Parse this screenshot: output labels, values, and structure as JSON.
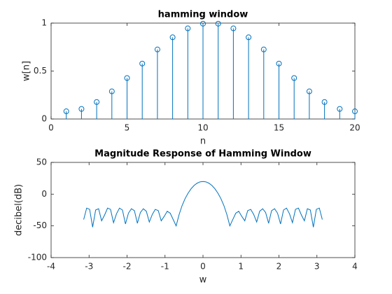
{
  "chart_data": [
    {
      "type": "stem",
      "title": "hamming window",
      "xlabel": "n",
      "ylabel": "w[n]",
      "color": "#0072bd",
      "x": [
        1,
        2,
        3,
        4,
        5,
        6,
        7,
        8,
        9,
        10,
        11,
        12,
        13,
        14,
        15,
        16,
        17,
        18,
        19,
        20
      ],
      "values": [
        0.08,
        0.105,
        0.177,
        0.288,
        0.427,
        0.578,
        0.725,
        0.852,
        0.945,
        0.994,
        0.994,
        0.945,
        0.852,
        0.725,
        0.578,
        0.427,
        0.288,
        0.177,
        0.105,
        0.08
      ],
      "xlim": [
        0,
        20
      ],
      "xticks": [
        0,
        5,
        10,
        15,
        20
      ],
      "ylim": [
        0,
        1
      ],
      "yticks": [
        0,
        0.5,
        1
      ]
    },
    {
      "type": "line",
      "title": "Magnitude Response of Hamming Window",
      "xlabel": "w",
      "ylabel": "decibel(dB)",
      "color": "#0072bd",
      "x": [
        -3.142,
        -3.063,
        -2.985,
        -2.906,
        -2.827,
        -2.749,
        -2.67,
        -2.592,
        -2.513,
        -2.435,
        -2.356,
        -2.278,
        -2.199,
        -2.121,
        -2.042,
        -1.963,
        -1.885,
        -1.806,
        -1.728,
        -1.649,
        -1.571,
        -1.492,
        -1.414,
        -1.335,
        -1.257,
        -1.178,
        -1.1,
        -1.021,
        -0.942,
        -0.864,
        -0.785,
        -0.707,
        -0.628,
        -0.55,
        -0.471,
        -0.393,
        -0.314,
        -0.236,
        -0.157,
        -0.079,
        0,
        0.079,
        0.157,
        0.236,
        0.314,
        0.393,
        0.471,
        0.55,
        0.628,
        0.707,
        0.785,
        0.864,
        0.942,
        1.021,
        1.1,
        1.178,
        1.257,
        1.335,
        1.414,
        1.492,
        1.571,
        1.649,
        1.728,
        1.806,
        1.885,
        1.963,
        2.042,
        2.121,
        2.199,
        2.278,
        2.356,
        2.435,
        2.513,
        2.592,
        2.67,
        2.749,
        2.827,
        2.906,
        2.985,
        3.063,
        3.142
      ],
      "values": [
        -40,
        -22,
        -24,
        -52,
        -25,
        -23,
        -42,
        -33,
        -22,
        -24,
        -45,
        -31,
        -22,
        -25,
        -47,
        -30,
        -23,
        -26,
        -46,
        -29,
        -23,
        -27,
        -44,
        -32,
        -24,
        -26,
        -42,
        -35,
        -27,
        -30,
        -40,
        -50,
        -32,
        -18,
        -7,
        1.5,
        8.4,
        13.6,
        17.2,
        19.3,
        20,
        19.3,
        17.2,
        13.6,
        8.4,
        1.5,
        -7,
        -18,
        -32,
        -50,
        -40,
        -30,
        -27,
        -35,
        -42,
        -26,
        -24,
        -32,
        -44,
        -27,
        -23,
        -29,
        -46,
        -26,
        -23,
        -30,
        -47,
        -25,
        -22,
        -31,
        -45,
        -24,
        -22,
        -33,
        -42,
        -23,
        -25,
        -52,
        -24,
        -22,
        -40
      ],
      "xlim": [
        -4,
        4
      ],
      "xticks": [
        -4,
        -3,
        -2,
        -1,
        0,
        1,
        2,
        3,
        4
      ],
      "ylim": [
        -100,
        50
      ],
      "yticks": [
        -100,
        -50,
        0,
        50
      ]
    }
  ]
}
